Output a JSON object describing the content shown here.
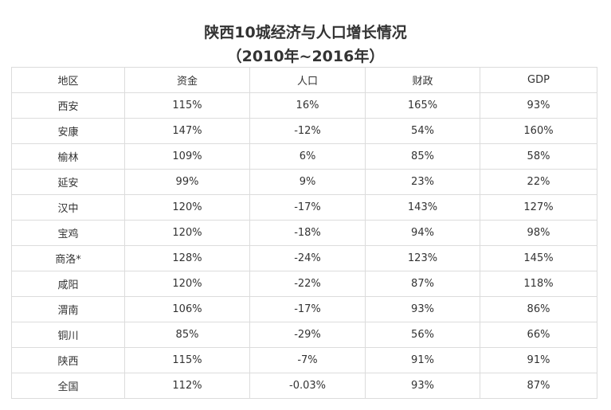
{
  "title": {
    "line1": "陕西10城经济与人口增长情况",
    "line2": "（2010年~2016年）"
  },
  "table": {
    "headers": [
      "地区",
      "资金",
      "人口",
      "财政",
      "GDP"
    ],
    "rows": [
      [
        "西安",
        "115%",
        "16%",
        "165%",
        "93%"
      ],
      [
        "安康",
        "147%",
        "-12%",
        "54%",
        "160%"
      ],
      [
        "榆林",
        "109%",
        "6%",
        "85%",
        "58%"
      ],
      [
        "延安",
        "99%",
        "9%",
        "23%",
        "22%"
      ],
      [
        "汉中",
        "120%",
        "-17%",
        "143%",
        "127%"
      ],
      [
        "宝鸡",
        "120%",
        "-18%",
        "94%",
        "98%"
      ],
      [
        "商洛*",
        "128%",
        "-24%",
        "123%",
        "145%"
      ],
      [
        "咸阳",
        "120%",
        "-22%",
        "87%",
        "118%"
      ],
      [
        "渭南",
        "106%",
        "-17%",
        "93%",
        "86%"
      ],
      [
        "铜川",
        "85%",
        "-29%",
        "56%",
        "66%"
      ],
      [
        "陕西",
        "115%",
        "-7%",
        "91%",
        "91%"
      ],
      [
        "全国",
        "112%",
        "-0.03%",
        "93%",
        "87%"
      ]
    ]
  },
  "colors": {
    "text": "#333333",
    "border": "#dcdcdc",
    "background": "#ffffff"
  }
}
